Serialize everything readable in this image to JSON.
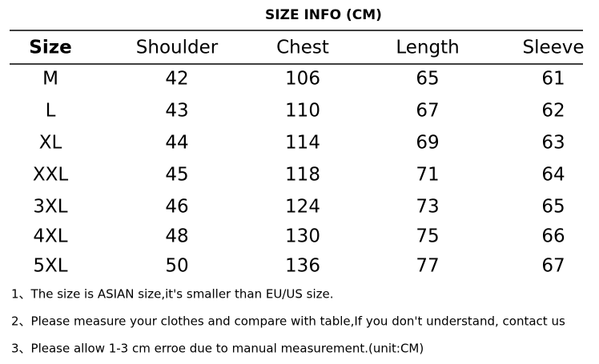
{
  "title": "SIZE INFO (CM)",
  "table": {
    "header": [
      "Size",
      "Shoulder",
      "Chest",
      "Length",
      "Sleeve"
    ],
    "rows": [
      [
        "M",
        42,
        106,
        65,
        61
      ],
      [
        "L",
        43,
        110,
        67,
        62
      ],
      [
        "XL",
        44,
        114,
        69,
        63
      ],
      [
        "XXL",
        45,
        118,
        71,
        64
      ],
      [
        "3XL",
        46,
        124,
        73,
        65
      ],
      [
        "4XL",
        48,
        130,
        75,
        66
      ],
      [
        "5XL",
        50,
        136,
        77,
        67
      ]
    ]
  },
  "notes": [
    "1、The size is ASIAN size,it's smaller than EU/US size.",
    "2、Please measure your clothes and compare with table,If you don't understand, contact us",
    "3、Please allow 1-3 cm erroe due to manual measurement.(unit:CM)"
  ]
}
